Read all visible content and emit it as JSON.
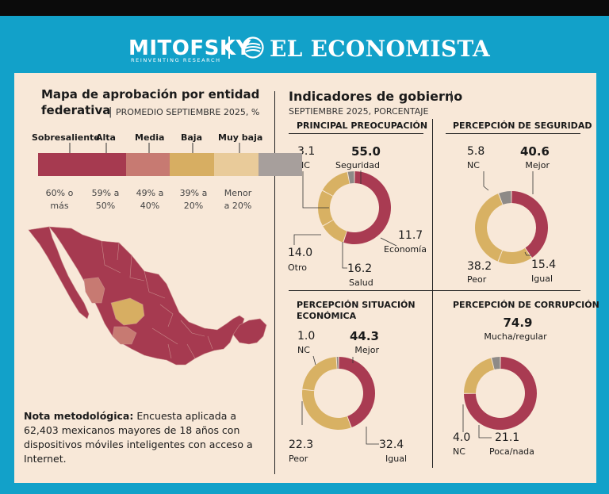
{
  "header": {
    "brand_left": "MITOFSKY",
    "brand_left_tagline": "REINVENTING RESEARCH",
    "brand_right": "EL ECONOMISTA"
  },
  "map_section": {
    "title_line1": "Mapa de aprobación por entidad",
    "title_line2": "federativa",
    "subtitle": "PROMEDIO SEPTIEMBRE 2025, %",
    "legend": [
      {
        "label": "Sobresaliente",
        "range_l1": "60% o",
        "range_l2": "más",
        "color": "#a63a50"
      },
      {
        "label": "Alta",
        "range_l1": "59% a",
        "range_l2": "50%",
        "color": "#c77a72"
      },
      {
        "label": "Media",
        "range_l1": "49% a",
        "range_l2": "40%",
        "color": "#d7ae62"
      },
      {
        "label": "Baja",
        "range_l1": "39% a",
        "range_l2": "20%",
        "color": "#e9cb9a"
      },
      {
        "label": "Muy baja",
        "range_l1": "Menor",
        "range_l2": "a 20%",
        "color": "#a79f9c"
      }
    ],
    "note_bold": "Nota metodológica:",
    "note_text": " Encuesta aplicada a 62,403 mexicanos mayores de 18 años con dispositivos móviles inteligentes con acceso a Internet."
  },
  "gov_section": {
    "title": "Indicadores de gobierno",
    "subtitle": "SEPTIEMBRE 2025, PORCENTAJE"
  },
  "colors": {
    "crimson": "#a93b52",
    "gold": "#d8b163",
    "gray": "#8e8a87"
  },
  "chart_data": [
    {
      "type": "pie",
      "title": "PRINCIPAL PREOCUPACIÓN",
      "slices": [
        {
          "label": "Seguridad",
          "value": 55.0,
          "color": "#a93b52"
        },
        {
          "label": "Economía",
          "value": 11.7,
          "color": "#d8b163"
        },
        {
          "label": "Salud",
          "value": 16.2,
          "color": "#d8b163"
        },
        {
          "label": "Otro",
          "value": 14.0,
          "color": "#d8b163"
        },
        {
          "label": "NC",
          "value": 3.1,
          "color": "#8e8a87"
        }
      ]
    },
    {
      "type": "pie",
      "title": "PERCEPCIÓN DE SEGURIDAD",
      "slices": [
        {
          "label": "Mejor",
          "value": 40.6,
          "color": "#a93b52"
        },
        {
          "label": "Igual",
          "value": 15.4,
          "color": "#d8b163"
        },
        {
          "label": "Peor",
          "value": 38.2,
          "color": "#d8b163"
        },
        {
          "label": "NC",
          "value": 5.8,
          "color": "#8e8a87"
        }
      ]
    },
    {
      "type": "pie",
      "title": "PERCEPCIÓN SITUACIÓN ECONÓMICA",
      "slices": [
        {
          "label": "Mejor",
          "value": 44.3,
          "color": "#a93b52"
        },
        {
          "label": "Igual",
          "value": 32.4,
          "color": "#d8b163"
        },
        {
          "label": "Peor",
          "value": 22.3,
          "color": "#d8b163"
        },
        {
          "label": "NC",
          "value": 1.0,
          "color": "#8e8a87"
        }
      ]
    },
    {
      "type": "pie",
      "title": "PERCEPCIÓN DE CORRUPCIÓN",
      "slices": [
        {
          "label": "Mucha/regular",
          "value": 74.9,
          "color": "#a93b52"
        },
        {
          "label": "Poca/nada",
          "value": 21.1,
          "color": "#d8b163"
        },
        {
          "label": "NC",
          "value": 4.0,
          "color": "#8e8a87"
        }
      ]
    }
  ]
}
